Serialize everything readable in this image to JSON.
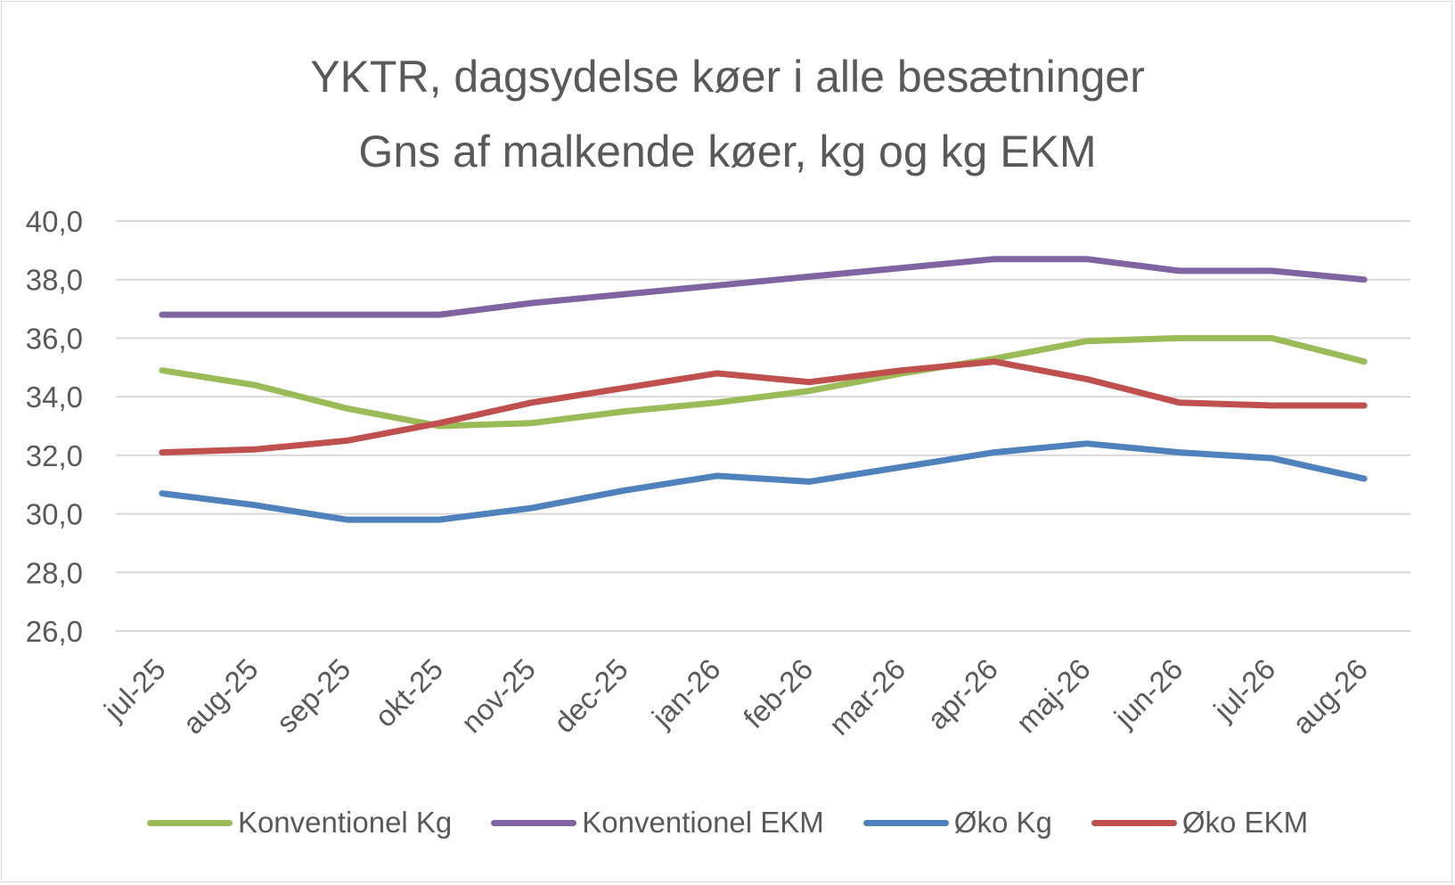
{
  "chart_data": {
    "type": "line",
    "title": "YKTR, dagsydelse køer i alle besætninger",
    "subtitle": "Gns af malkende køer, kg og kg EKM",
    "categories": [
      "jul-25",
      "aug-25",
      "sep-25",
      "okt-25",
      "nov-25",
      "dec-25",
      "jan-26",
      "feb-26",
      "mar-26",
      "apr-26",
      "maj-26",
      "jun-26",
      "jul-26",
      "aug-26"
    ],
    "ylim": [
      26,
      40
    ],
    "yticks": [
      "26,0",
      "28,0",
      "30,0",
      "32,0",
      "34,0",
      "36,0",
      "38,0",
      "40,0"
    ],
    "grid": true,
    "legend_position": "bottom",
    "series": [
      {
        "name": "Konventionel Kg",
        "color": "#9bbb59",
        "values": [
          34.9,
          34.4,
          33.6,
          33.0,
          33.1,
          33.5,
          33.8,
          34.2,
          34.8,
          35.3,
          35.9,
          36.0,
          36.0,
          35.2
        ]
      },
      {
        "name": "Konventionel EKM",
        "color": "#8064a2",
        "values": [
          36.8,
          36.8,
          36.8,
          36.8,
          37.2,
          37.5,
          37.8,
          38.1,
          38.4,
          38.7,
          38.7,
          38.3,
          38.3,
          38.0
        ]
      },
      {
        "name": "Øko Kg",
        "color": "#4f81bd",
        "values": [
          30.7,
          30.3,
          29.8,
          29.8,
          30.2,
          30.8,
          31.3,
          31.1,
          31.6,
          32.1,
          32.4,
          32.1,
          31.9,
          31.2
        ]
      },
      {
        "name": "Øko EKM",
        "color": "#c0504d",
        "values": [
          32.1,
          32.2,
          32.5,
          33.1,
          33.8,
          34.3,
          34.8,
          34.5,
          34.9,
          35.2,
          34.6,
          33.8,
          33.7,
          33.7
        ]
      }
    ]
  }
}
